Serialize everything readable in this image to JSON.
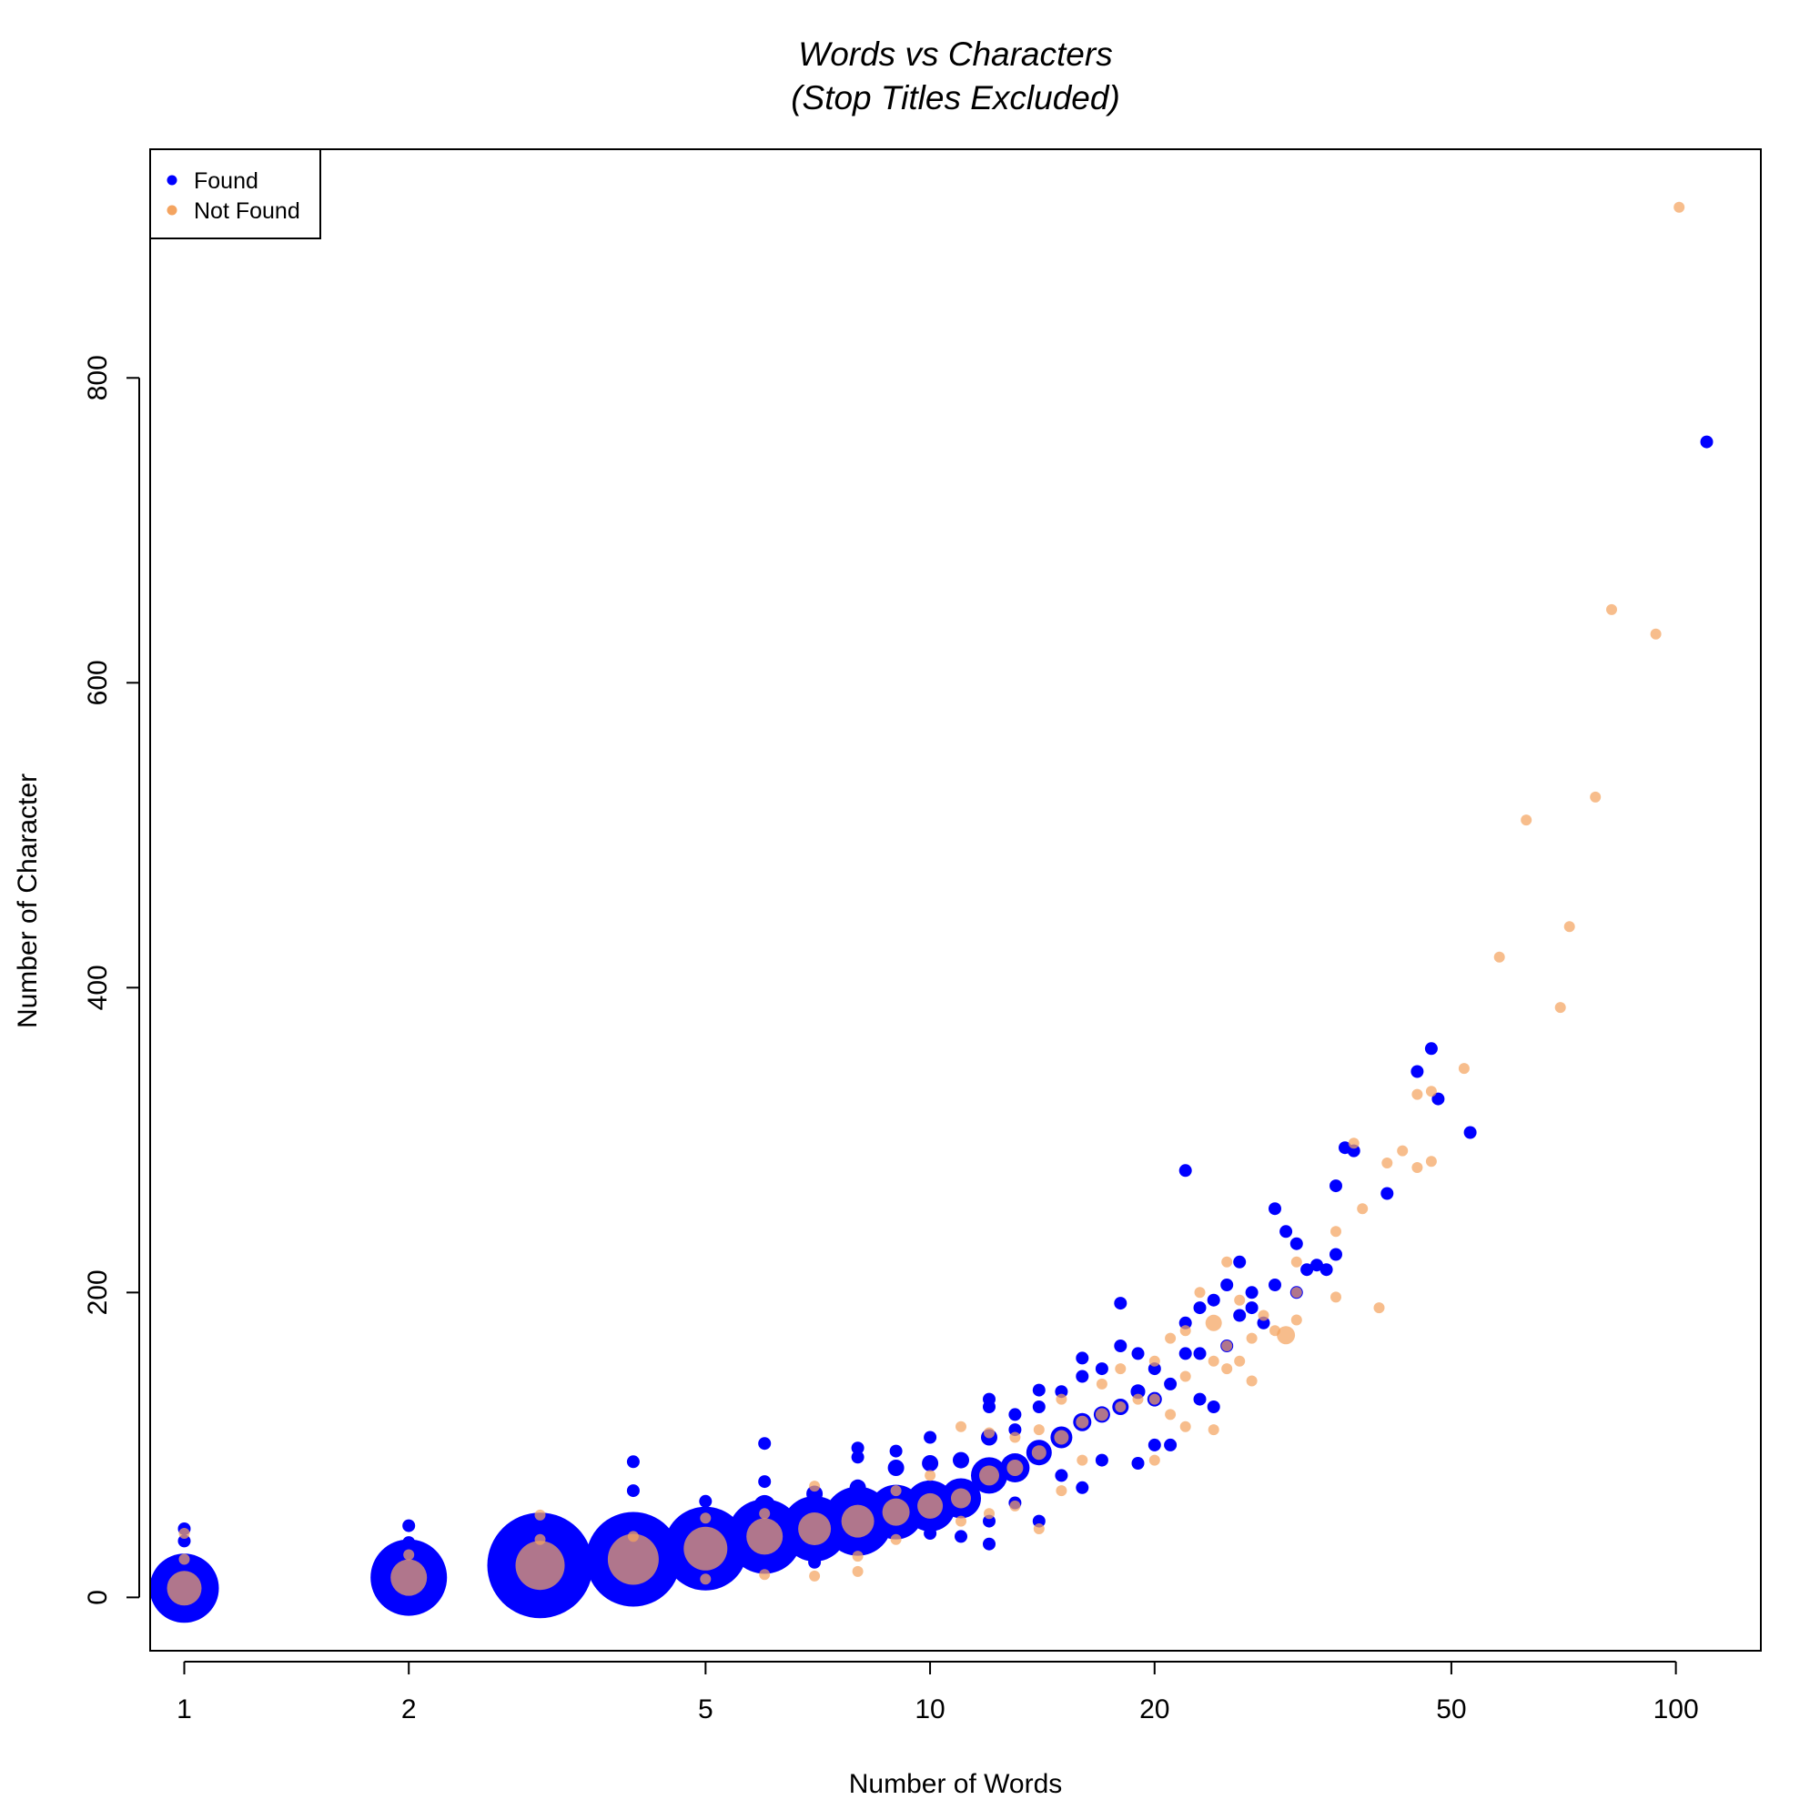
{
  "chart_data": {
    "type": "scatter",
    "title": "Words vs Characters",
    "subtitle": "(Stop Titles Excluded)",
    "xlabel": "Number of Words",
    "ylabel": "Number of Character",
    "x_scale": "log",
    "xlim": [
      0.9,
      130
    ],
    "ylim": [
      -35,
      950
    ],
    "x_ticks": [
      1,
      2,
      5,
      10,
      20,
      50,
      100
    ],
    "x_tick_labels": [
      "1",
      "2",
      "5",
      "10",
      "20",
      "50",
      "100"
    ],
    "y_ticks": [
      0,
      200,
      400,
      600,
      800
    ],
    "y_tick_labels": [
      "0",
      "200",
      "400",
      "600",
      "800"
    ],
    "grid": false,
    "legend": {
      "position": "top-left",
      "entries": [
        {
          "label": "Found",
          "color": "#0000ff"
        },
        {
          "label": "Not Found",
          "color": "#f4a460"
        }
      ]
    },
    "series": [
      {
        "name": "Found",
        "color": "#0000ff",
        "points": [
          [
            1,
            6,
            38
          ],
          [
            1,
            45,
            7
          ],
          [
            1,
            37,
            7
          ],
          [
            2,
            13,
            42
          ],
          [
            2,
            47,
            7
          ],
          [
            2,
            36,
            7
          ],
          [
            3,
            21,
            58
          ],
          [
            3,
            40,
            7
          ],
          [
            4,
            25,
            52
          ],
          [
            4,
            48,
            12
          ],
          [
            4,
            70,
            7
          ],
          [
            4,
            89,
            7
          ],
          [
            5,
            32,
            46
          ],
          [
            5,
            63,
            7
          ],
          [
            5,
            38,
            7
          ],
          [
            6,
            40,
            41
          ],
          [
            6,
            60,
            12
          ],
          [
            6,
            101,
            7
          ],
          [
            6,
            76,
            7
          ],
          [
            7,
            45,
            36
          ],
          [
            7,
            68,
            9
          ],
          [
            7,
            23,
            7
          ],
          [
            8,
            50,
            38
          ],
          [
            8,
            72,
            9
          ],
          [
            8,
            98,
            7
          ],
          [
            8,
            92,
            7
          ],
          [
            9,
            56,
            30
          ],
          [
            9,
            85,
            9
          ],
          [
            9,
            96,
            7
          ],
          [
            10,
            60,
            28
          ],
          [
            10,
            88,
            9
          ],
          [
            10,
            105,
            7
          ],
          [
            10,
            42,
            7
          ],
          [
            11,
            65,
            22
          ],
          [
            11,
            90,
            9
          ],
          [
            11,
            40,
            7
          ],
          [
            12,
            80,
            20
          ],
          [
            12,
            105,
            9
          ],
          [
            12,
            130,
            7
          ],
          [
            12,
            35,
            7
          ],
          [
            12,
            50,
            7
          ],
          [
            12,
            125,
            7
          ],
          [
            13,
            85,
            16
          ],
          [
            13,
            110,
            7
          ],
          [
            13,
            120,
            7
          ],
          [
            13,
            62,
            7
          ],
          [
            14,
            95,
            14
          ],
          [
            14,
            125,
            7
          ],
          [
            14,
            136,
            7
          ],
          [
            14,
            50,
            7
          ],
          [
            15,
            105,
            12
          ],
          [
            15,
            135,
            7
          ],
          [
            15,
            80,
            7
          ],
          [
            16,
            115,
            10
          ],
          [
            16,
            157,
            7
          ],
          [
            16,
            145,
            7
          ],
          [
            16,
            72,
            7
          ],
          [
            17,
            120,
            9
          ],
          [
            17,
            150,
            7
          ],
          [
            17,
            90,
            7
          ],
          [
            18,
            125,
            9
          ],
          [
            18,
            193,
            7
          ],
          [
            18,
            165,
            7
          ],
          [
            19,
            135,
            8
          ],
          [
            19,
            160,
            7
          ],
          [
            19,
            88,
            7
          ],
          [
            20,
            130,
            8
          ],
          [
            20,
            150,
            7
          ],
          [
            20,
            100,
            7
          ],
          [
            21,
            140,
            7
          ],
          [
            21,
            100,
            7
          ],
          [
            22,
            280,
            7
          ],
          [
            22,
            180,
            7
          ],
          [
            22,
            160,
            7
          ],
          [
            23,
            190,
            7
          ],
          [
            23,
            160,
            7
          ],
          [
            23,
            130,
            7
          ],
          [
            24,
            195,
            7
          ],
          [
            24,
            125,
            7
          ],
          [
            25,
            205,
            7
          ],
          [
            25,
            165,
            7
          ],
          [
            26,
            220,
            7
          ],
          [
            26,
            185,
            7
          ],
          [
            27,
            200,
            7
          ],
          [
            27,
            190,
            7
          ],
          [
            28,
            180,
            7
          ],
          [
            29,
            255,
            7
          ],
          [
            29,
            205,
            7
          ],
          [
            30,
            240,
            7
          ],
          [
            31,
            232,
            7
          ],
          [
            31,
            200,
            7
          ],
          [
            32,
            215,
            7
          ],
          [
            33,
            218,
            7
          ],
          [
            34,
            215,
            7
          ],
          [
            35,
            225,
            7
          ],
          [
            35,
            270,
            7
          ],
          [
            36,
            295,
            7
          ],
          [
            37,
            293,
            7
          ],
          [
            41,
            265,
            7
          ],
          [
            45,
            345,
            7
          ],
          [
            47,
            360,
            7
          ],
          [
            48,
            327,
            7
          ],
          [
            53,
            305,
            7
          ],
          [
            110,
            758,
            7
          ]
        ]
      },
      {
        "name": "Not Found",
        "color": "#f4a460",
        "points": [
          [
            1,
            6,
            19
          ],
          [
            1,
            25,
            6
          ],
          [
            1,
            42,
            6
          ],
          [
            2,
            13,
            20
          ],
          [
            2,
            28,
            6
          ],
          [
            3,
            21,
            27
          ],
          [
            3,
            54,
            6
          ],
          [
            3,
            38,
            6
          ],
          [
            4,
            25,
            28
          ],
          [
            4,
            40,
            6
          ],
          [
            5,
            32,
            24
          ],
          [
            5,
            12,
            6
          ],
          [
            5,
            52,
            6
          ],
          [
            6,
            40,
            20
          ],
          [
            6,
            15,
            6
          ],
          [
            6,
            55,
            6
          ],
          [
            7,
            45,
            18
          ],
          [
            7,
            14,
            6
          ],
          [
            7,
            73,
            6
          ],
          [
            8,
            50,
            18
          ],
          [
            8,
            17,
            6
          ],
          [
            8,
            27,
            6
          ],
          [
            9,
            56,
            15
          ],
          [
            9,
            38,
            6
          ],
          [
            9,
            70,
            6
          ],
          [
            10,
            60,
            14
          ],
          [
            10,
            80,
            6
          ],
          [
            11,
            65,
            11
          ],
          [
            11,
            112,
            6
          ],
          [
            11,
            50,
            6
          ],
          [
            12,
            80,
            11
          ],
          [
            12,
            108,
            6
          ],
          [
            12,
            55,
            6
          ],
          [
            13,
            85,
            9
          ],
          [
            13,
            105,
            6
          ],
          [
            13,
            60,
            6
          ],
          [
            14,
            95,
            8
          ],
          [
            14,
            45,
            6
          ],
          [
            14,
            110,
            6
          ],
          [
            15,
            105,
            8
          ],
          [
            15,
            130,
            6
          ],
          [
            15,
            70,
            6
          ],
          [
            16,
            115,
            7
          ],
          [
            16,
            90,
            6
          ],
          [
            17,
            120,
            7
          ],
          [
            17,
            140,
            6
          ],
          [
            18,
            125,
            6
          ],
          [
            18,
            150,
            6
          ],
          [
            19,
            130,
            6
          ],
          [
            20,
            130,
            6
          ],
          [
            20,
            155,
            6
          ],
          [
            20,
            90,
            6
          ],
          [
            21,
            170,
            6
          ],
          [
            21,
            120,
            6
          ],
          [
            22,
            175,
            6
          ],
          [
            22,
            145,
            6
          ],
          [
            22,
            112,
            6
          ],
          [
            23,
            200,
            6
          ],
          [
            24,
            180,
            9
          ],
          [
            24,
            155,
            6
          ],
          [
            24,
            110,
            6
          ],
          [
            25,
            220,
            6
          ],
          [
            25,
            165,
            6
          ],
          [
            25,
            150,
            6
          ],
          [
            26,
            195,
            6
          ],
          [
            26,
            155,
            6
          ],
          [
            27,
            170,
            6
          ],
          [
            27,
            142,
            6
          ],
          [
            28,
            185,
            6
          ],
          [
            29,
            175,
            6
          ],
          [
            30,
            172,
            10
          ],
          [
            31,
            200,
            6
          ],
          [
            31,
            182,
            6
          ],
          [
            31,
            220,
            6
          ],
          [
            35,
            240,
            6
          ],
          [
            35,
            197,
            6
          ],
          [
            37,
            298,
            6
          ],
          [
            38,
            255,
            6
          ],
          [
            40,
            190,
            6
          ],
          [
            41,
            285,
            6
          ],
          [
            43,
            293,
            6
          ],
          [
            45,
            330,
            6
          ],
          [
            45,
            282,
            6
          ],
          [
            47,
            332,
            6
          ],
          [
            47,
            286,
            6
          ],
          [
            52,
            347,
            6
          ],
          [
            58,
            420,
            6
          ],
          [
            63,
            510,
            6
          ],
          [
            70,
            387,
            6
          ],
          [
            72,
            440,
            6
          ],
          [
            78,
            525,
            6
          ],
          [
            82,
            648,
            6
          ],
          [
            94,
            632,
            6
          ],
          [
            101,
            912,
            6
          ]
        ]
      }
    ]
  }
}
